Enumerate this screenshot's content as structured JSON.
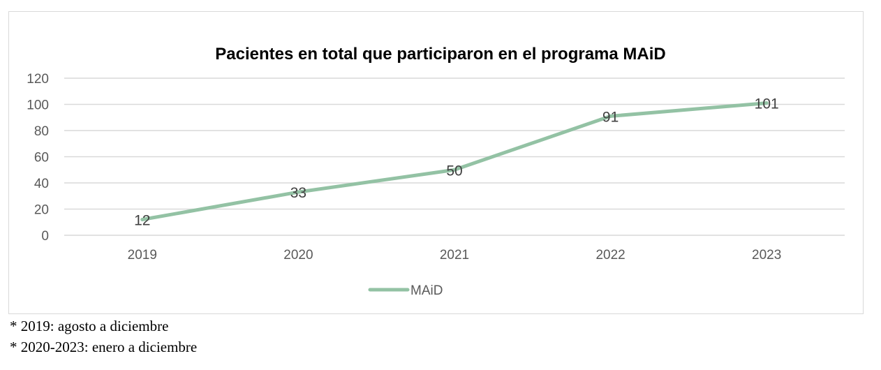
{
  "colors": {
    "series": "#93c2a4",
    "grid": "#d9d9d9",
    "axis_text": "#595959",
    "title": "#000000",
    "data_label": "#404040"
  },
  "chart_data": {
    "type": "line",
    "title": "Pacientes en total que participaron en el programa MAiD",
    "xlabel": "",
    "ylabel": "",
    "categories": [
      "2019",
      "2020",
      "2021",
      "2022",
      "2023"
    ],
    "series": [
      {
        "name": "MAiD",
        "values": [
          12,
          33,
          50,
          91,
          101
        ]
      }
    ],
    "ylim": [
      0,
      120
    ],
    "yticks": [
      "0",
      "20",
      "40",
      "60",
      "80",
      "100",
      "120"
    ],
    "grid": true,
    "legend": "bottom"
  },
  "notes": [
    "* 2019: agosto a diciembre",
    "* 2020-2023: enero a diciembre"
  ]
}
